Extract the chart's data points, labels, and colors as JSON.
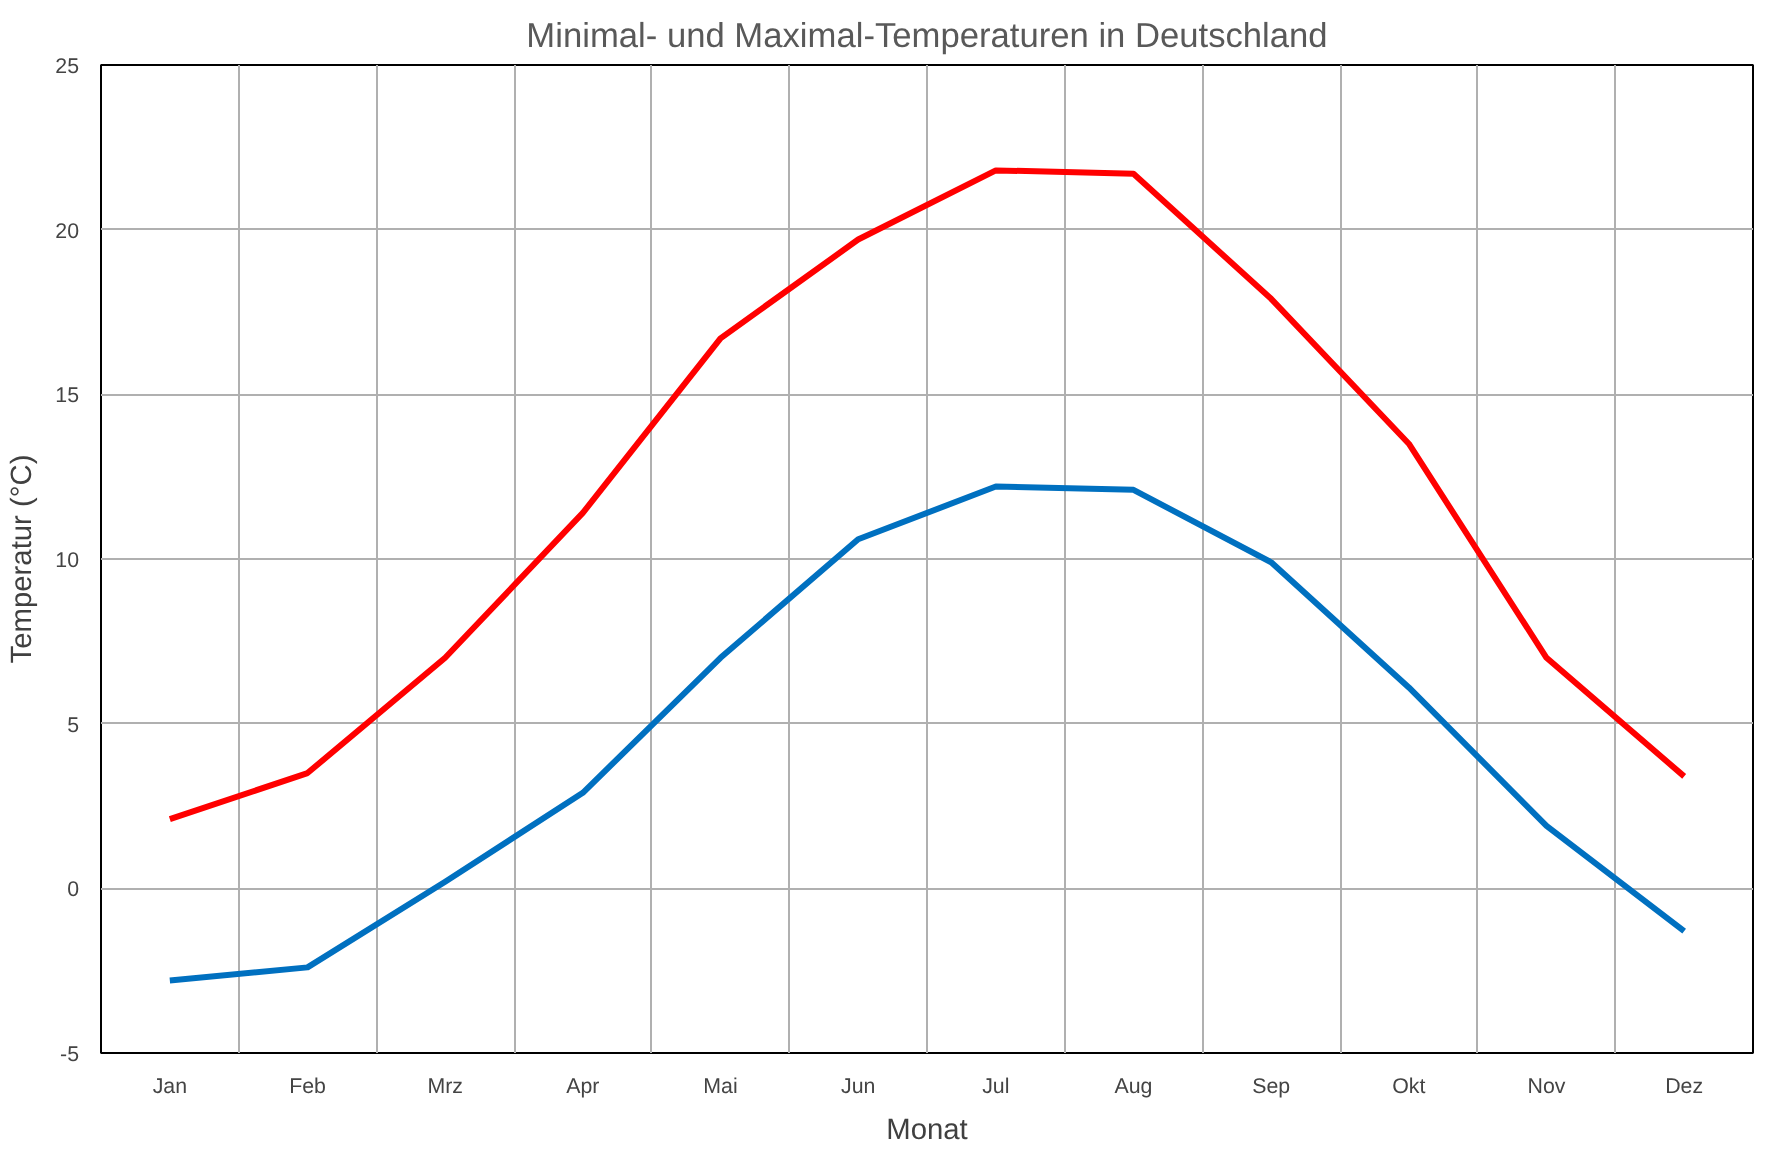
{
  "chart_data": {
    "type": "line",
    "title": "Minimal- und Maximal-Temperaturen in Deutschland",
    "xlabel": "Monat",
    "ylabel": "Temperatur (°C)",
    "categories": [
      "Jan",
      "Feb",
      "Mrz",
      "Apr",
      "Mai",
      "Jun",
      "Jul",
      "Aug",
      "Sep",
      "Okt",
      "Nov",
      "Dez"
    ],
    "series": [
      {
        "color": "#ff0000",
        "values": [
          2.1,
          3.5,
          7.0,
          11.4,
          16.7,
          19.7,
          21.8,
          21.7,
          17.9,
          13.5,
          7.0,
          3.4
        ]
      },
      {
        "color": "#0070c0",
        "values": [
          -2.8,
          -2.4,
          0.2,
          2.9,
          7.0,
          10.6,
          12.2,
          12.1,
          9.9,
          6.1,
          1.9,
          -1.3
        ]
      }
    ],
    "ylim": [
      -5,
      25
    ],
    "yticks": [
      -5,
      0,
      5,
      10,
      15,
      20,
      25
    ],
    "grid": true,
    "marker": "none",
    "line_style": "solid"
  }
}
